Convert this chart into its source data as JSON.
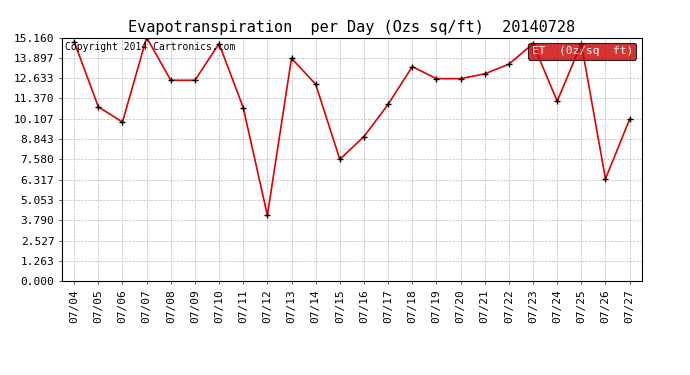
{
  "title": "Evapotranspiration  per Day (Ozs sq/ft)  20140728",
  "copyright": "Copyright 2014 Cartronics.com",
  "legend_label": "ET  (0z/sq  ft)",
  "x_labels": [
    "07/04",
    "07/05",
    "07/06",
    "07/07",
    "07/08",
    "07/09",
    "07/10",
    "07/11",
    "07/12",
    "07/13",
    "07/14",
    "07/15",
    "07/16",
    "07/17",
    "07/18",
    "07/19",
    "07/20",
    "07/21",
    "07/22",
    "07/23",
    "07/24",
    "07/25",
    "07/26",
    "07/27"
  ],
  "y_values": [
    14.9,
    10.85,
    9.9,
    15.16,
    12.5,
    12.5,
    14.78,
    10.8,
    4.1,
    13.87,
    12.25,
    7.58,
    9.0,
    11.0,
    13.35,
    12.6,
    12.6,
    12.9,
    13.5,
    14.78,
    11.2,
    14.78,
    6.37,
    10.07
  ],
  "y_ticks": [
    0.0,
    1.263,
    2.527,
    3.79,
    5.053,
    6.317,
    7.58,
    8.843,
    10.107,
    11.37,
    12.633,
    13.897,
    15.16
  ],
  "y_min": 0.0,
  "y_max": 15.16,
  "line_color": "#dd0000",
  "marker_color": "#000000",
  "bg_color": "#ffffff",
  "grid_color": "#bbbbbb",
  "title_fontsize": 11,
  "copyright_fontsize": 7,
  "tick_fontsize": 8,
  "legend_bg": "#cc0000",
  "legend_text_color": "#ffffff",
  "legend_fontsize": 8
}
